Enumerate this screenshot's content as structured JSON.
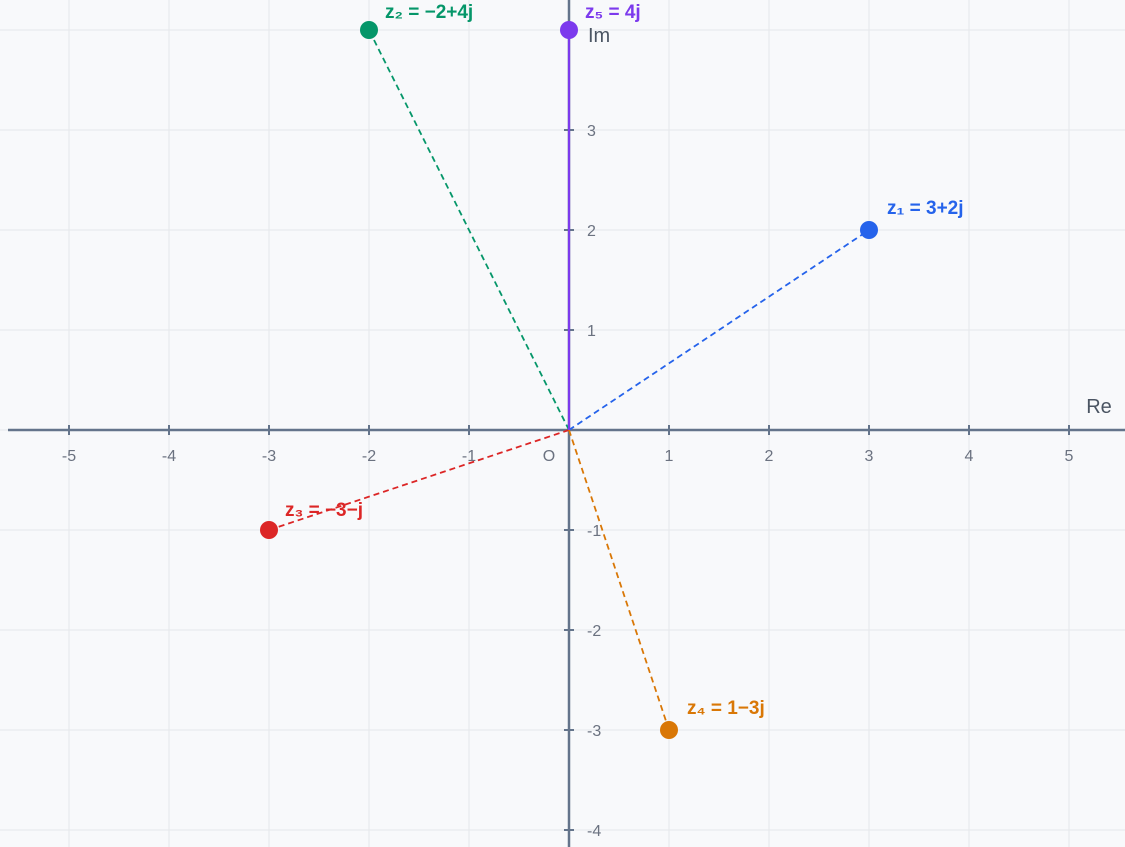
{
  "chart_data": {
    "type": "scatter",
    "x_axis_label": "Re",
    "y_axis_label": "Im",
    "origin_label": "O",
    "xlim": [
      -5.6,
      5.6
    ],
    "ylim": [
      -4.17,
      4.3
    ],
    "x_ticks": [
      -5,
      -4,
      -3,
      -2,
      -1,
      1,
      2,
      3,
      4,
      5
    ],
    "y_ticks": [
      -4,
      -3,
      -2,
      -1,
      1,
      2,
      3
    ],
    "grid": true,
    "points": [
      {
        "label": "z₁ = 3+2j",
        "x": 3,
        "y": 2,
        "color": "#2563eb"
      },
      {
        "label": "z₂ = −2+4j",
        "x": -2,
        "y": 4,
        "color": "#059669"
      },
      {
        "label": "z₃ = −3−j",
        "x": -3,
        "y": -1,
        "color": "#dc2626"
      },
      {
        "label": "z₄ = 1−3j",
        "x": 1,
        "y": -3,
        "color": "#d97706"
      },
      {
        "label": "z₅ = 4j",
        "x": 0,
        "y": 4,
        "color": "#7c3aed"
      }
    ]
  },
  "colors": {
    "background": "#f8f9fb",
    "grid": "#e5e7eb",
    "axis": "#64748b"
  }
}
